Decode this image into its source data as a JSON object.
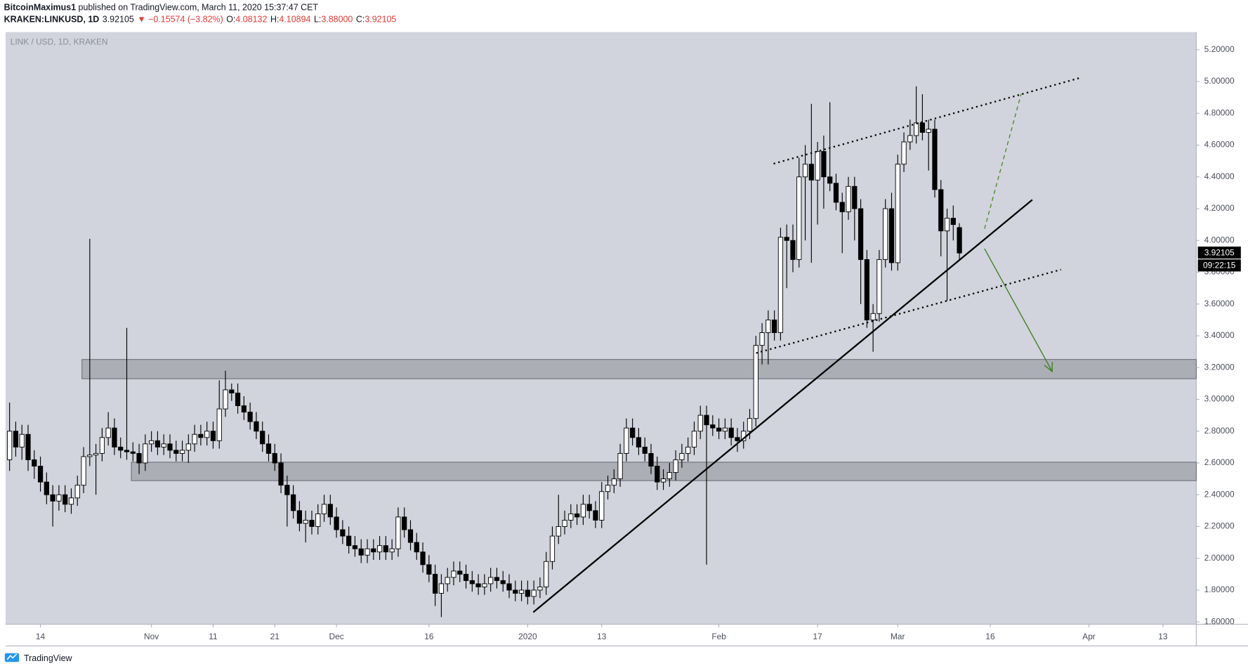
{
  "header": {
    "author": "BitcoinMaximus1",
    "published": " published on TradingView.com, March 11, 2020 15:37:47 CET",
    "symbol": "KRAKEN:LINKUSD, 1D",
    "last": "3.92105",
    "change": "▼ −0.15574 (−3.82%)",
    "ohlc": [
      {
        "label": "O:",
        "value": "4.08132"
      },
      {
        "label": "H:",
        "value": "4.10894"
      },
      {
        "label": "L:",
        "value": "3.88000"
      },
      {
        "label": "C:",
        "value": "3.92105"
      }
    ]
  },
  "footer": {
    "brand": "TradingView"
  },
  "chart_data": {
    "type": "candlestick",
    "title": "LINK / USD, 1D, KRAKEN",
    "last_price_label": "3.92105",
    "countdown": "09:22:15",
    "up_color": "#ffffff",
    "down_color": "#000000",
    "grid": false,
    "xlim": [
      -0.65,
      192.4
    ],
    "ylim": [
      1.585,
      5.311
    ],
    "xticks": [
      {
        "value": 5,
        "label": "14"
      },
      {
        "value": 23,
        "label": "Nov"
      },
      {
        "value": 33,
        "label": "11"
      },
      {
        "value": 43,
        "label": "21"
      },
      {
        "value": 53,
        "label": "Dec"
      },
      {
        "value": 68,
        "label": "16"
      },
      {
        "value": 84,
        "label": "2020"
      },
      {
        "value": 96,
        "label": "13"
      },
      {
        "value": 115,
        "label": "Feb"
      },
      {
        "value": 131,
        "label": "17"
      },
      {
        "value": 144,
        "label": "Mar"
      },
      {
        "value": 159,
        "label": "16"
      },
      {
        "value": 175,
        "label": "Apr"
      },
      {
        "value": 187,
        "label": "13"
      }
    ],
    "yticks": [
      {
        "value": 1.6,
        "label": "1.60000"
      },
      {
        "value": 1.8,
        "label": "1.80000"
      },
      {
        "value": 2.0,
        "label": "2.00000"
      },
      {
        "value": 2.2,
        "label": "2.20000"
      },
      {
        "value": 2.4,
        "label": "2.40000"
      },
      {
        "value": 2.6,
        "label": "2.60000"
      },
      {
        "value": 2.8,
        "label": "2.80000"
      },
      {
        "value": 3.0,
        "label": "3.00000"
      },
      {
        "value": 3.2,
        "label": "3.20000"
      },
      {
        "value": 3.4,
        "label": "3.40000"
      },
      {
        "value": 3.6,
        "label": "3.60000"
      },
      {
        "value": 3.8,
        "label": "3.80000"
      },
      {
        "value": 4.0,
        "label": "4.00000"
      },
      {
        "value": 4.2,
        "label": "4.20000"
      },
      {
        "value": 4.4,
        "label": "4.40000"
      },
      {
        "value": 4.6,
        "label": "4.60000"
      },
      {
        "value": 4.8,
        "label": "4.80000"
      },
      {
        "value": 5.0,
        "label": "5.00000"
      },
      {
        "value": 5.2,
        "label": "5.20000"
      }
    ],
    "open": [
      2.62,
      2.8,
      2.7,
      2.78,
      2.62,
      2.58,
      2.48,
      2.4,
      2.36,
      2.4,
      2.34,
      2.38,
      2.46,
      2.64,
      2.65,
      2.66,
      2.76,
      2.82,
      2.7,
      2.68,
      2.67,
      2.66,
      2.6,
      2.72,
      2.74,
      2.7,
      2.72,
      2.68,
      2.66,
      2.68,
      2.72,
      2.78,
      2.76,
      2.8,
      2.74,
      2.94,
      3.06,
      3.04,
      2.96,
      2.92,
      2.86,
      2.8,
      2.72,
      2.66,
      2.6,
      2.46,
      2.4,
      2.3,
      2.22,
      2.24,
      2.2,
      2.28,
      2.34,
      2.26,
      2.18,
      2.14,
      2.08,
      2.06,
      2.02,
      2.06,
      2.04,
      2.08,
      2.04,
      2.06,
      2.26,
      2.18,
      2.1,
      2.04,
      1.96,
      1.9,
      1.78,
      1.84,
      1.88,
      1.92,
      1.9,
      1.86,
      1.84,
      1.82,
      1.84,
      1.88,
      1.86,
      1.84,
      1.8,
      1.78,
      1.8,
      1.76,
      1.8,
      1.82,
      1.98,
      2.14,
      2.2,
      2.24,
      2.28,
      2.26,
      2.34,
      2.3,
      2.24,
      2.42,
      2.46,
      2.5,
      2.66,
      2.82,
      2.76,
      2.7,
      2.66,
      2.58,
      2.48,
      2.5,
      2.54,
      2.62,
      2.66,
      2.7,
      2.8,
      2.9,
      2.84,
      2.82,
      2.8,
      2.82,
      2.76,
      2.74,
      2.8,
      2.88,
      3.34,
      3.42,
      3.5,
      3.42,
      4.02,
      4.0,
      3.88,
      4.4,
      4.48,
      4.38,
      4.56,
      4.4,
      4.36,
      4.24,
      4.18,
      4.34,
      4.2,
      3.88,
      3.5,
      3.54,
      3.88,
      4.2,
      3.86,
      4.48,
      4.62,
      4.66,
      4.74,
      4.68,
      4.7,
      4.32,
      4.06,
      4.14,
      4.08132
    ],
    "high": [
      2.98,
      2.86,
      2.84,
      2.84,
      2.68,
      2.64,
      2.54,
      2.46,
      2.46,
      2.46,
      2.44,
      2.52,
      2.7,
      4.01,
      2.72,
      2.82,
      2.92,
      2.88,
      2.76,
      3.45,
      2.73,
      2.72,
      2.78,
      2.8,
      2.8,
      2.78,
      2.78,
      2.74,
      2.74,
      2.78,
      2.84,
      2.84,
      2.86,
      2.86,
      3.12,
      3.18,
      3.1,
      3.1,
      3.02,
      2.98,
      2.92,
      2.86,
      2.78,
      2.72,
      2.66,
      2.52,
      2.46,
      2.36,
      2.3,
      2.3,
      2.34,
      2.4,
      2.4,
      2.32,
      2.24,
      2.2,
      2.14,
      2.12,
      2.12,
      2.12,
      2.14,
      2.14,
      2.12,
      2.32,
      2.32,
      2.24,
      2.16,
      2.1,
      2.02,
      1.96,
      1.9,
      1.94,
      1.98,
      1.98,
      1.96,
      1.92,
      1.9,
      1.9,
      1.94,
      1.94,
      1.92,
      1.9,
      1.86,
      1.86,
      1.86,
      1.86,
      1.88,
      2.04,
      2.2,
      2.4,
      2.3,
      2.34,
      2.34,
      2.4,
      2.4,
      2.36,
      2.48,
      2.52,
      2.56,
      2.72,
      2.88,
      2.88,
      2.82,
      2.76,
      2.72,
      2.64,
      2.56,
      2.6,
      2.68,
      2.72,
      2.76,
      2.86,
      2.96,
      2.96,
      2.9,
      2.88,
      2.88,
      2.88,
      2.82,
      2.86,
      2.94,
      3.4,
      3.48,
      3.56,
      3.56,
      4.08,
      4.1,
      4.1,
      4.52,
      4.6,
      4.86,
      4.62,
      4.66,
      4.87,
      4.42,
      4.3,
      4.4,
      4.4,
      4.26,
      3.94,
      3.6,
      3.94,
      4.26,
      4.3,
      4.54,
      4.68,
      4.76,
      4.97,
      4.92,
      4.76,
      4.76,
      4.38,
      4.2,
      4.22,
      4.10894
    ],
    "low": [
      2.55,
      2.64,
      2.62,
      2.55,
      2.5,
      2.42,
      2.34,
      2.2,
      2.3,
      2.29,
      2.28,
      2.33,
      2.41,
      2.58,
      2.4,
      2.61,
      2.71,
      2.65,
      2.63,
      2.62,
      2.61,
      2.53,
      2.55,
      2.67,
      2.65,
      2.65,
      2.63,
      2.61,
      2.61,
      2.6,
      2.67,
      2.71,
      2.71,
      2.69,
      2.69,
      2.89,
      2.99,
      2.91,
      2.87,
      2.81,
      2.75,
      2.67,
      2.61,
      2.55,
      2.41,
      2.2,
      2.25,
      2.17,
      2.1,
      2.15,
      2.15,
      2.23,
      2.21,
      2.13,
      2.09,
      2.03,
      2.01,
      1.97,
      1.97,
      1.99,
      1.99,
      1.99,
      1.99,
      2.01,
      2.13,
      2.05,
      1.99,
      1.91,
      1.85,
      1.7,
      1.63,
      1.79,
      1.83,
      1.85,
      1.81,
      1.79,
      1.77,
      1.77,
      1.79,
      1.81,
      1.79,
      1.75,
      1.73,
      1.73,
      1.71,
      1.71,
      1.75,
      1.77,
      1.93,
      2.09,
      2.15,
      2.19,
      2.21,
      2.21,
      2.25,
      2.19,
      2.19,
      2.37,
      2.41,
      2.45,
      2.61,
      2.71,
      2.65,
      2.61,
      2.53,
      2.43,
      2.43,
      2.45,
      2.49,
      2.57,
      2.61,
      2.65,
      2.75,
      1.96,
      2.77,
      2.75,
      2.75,
      2.71,
      2.67,
      2.69,
      2.75,
      2.83,
      3.22,
      3.22,
      3.37,
      3.37,
      3.7,
      3.8,
      3.83,
      4.0,
      3.86,
      4.1,
      4.2,
      4.31,
      4.19,
      3.92,
      4.13,
      4.0,
      3.6,
      3.45,
      3.3,
      3.49,
      3.83,
      3.81,
      3.81,
      4.43,
      4.57,
      4.61,
      4.63,
      4.44,
      4.27,
      3.9,
      3.62,
      4.0,
      3.88
    ],
    "close": [
      2.8,
      2.7,
      2.78,
      2.62,
      2.58,
      2.48,
      2.4,
      2.36,
      2.4,
      2.34,
      2.38,
      2.46,
      2.64,
      2.65,
      2.66,
      2.76,
      2.82,
      2.7,
      2.68,
      2.67,
      2.66,
      2.6,
      2.72,
      2.74,
      2.7,
      2.72,
      2.68,
      2.66,
      2.68,
      2.72,
      2.78,
      2.76,
      2.8,
      2.74,
      2.94,
      3.06,
      3.04,
      2.96,
      2.92,
      2.86,
      2.8,
      2.72,
      2.66,
      2.6,
      2.46,
      2.4,
      2.3,
      2.22,
      2.24,
      2.2,
      2.28,
      2.34,
      2.26,
      2.18,
      2.14,
      2.08,
      2.06,
      2.02,
      2.06,
      2.04,
      2.08,
      2.04,
      2.06,
      2.26,
      2.18,
      2.1,
      2.04,
      1.96,
      1.9,
      1.78,
      1.84,
      1.88,
      1.92,
      1.9,
      1.86,
      1.84,
      1.82,
      1.84,
      1.88,
      1.86,
      1.84,
      1.8,
      1.78,
      1.8,
      1.76,
      1.8,
      1.82,
      1.98,
      2.14,
      2.2,
      2.24,
      2.28,
      2.26,
      2.34,
      2.3,
      2.24,
      2.42,
      2.46,
      2.5,
      2.66,
      2.82,
      2.76,
      2.7,
      2.66,
      2.58,
      2.48,
      2.5,
      2.54,
      2.62,
      2.66,
      2.7,
      2.8,
      2.9,
      2.84,
      2.82,
      2.8,
      2.82,
      2.76,
      2.74,
      2.8,
      2.88,
      3.34,
      3.42,
      3.5,
      3.42,
      4.02,
      4.0,
      3.88,
      4.4,
      4.48,
      4.38,
      4.56,
      4.4,
      4.36,
      4.24,
      4.18,
      4.34,
      4.2,
      3.88,
      3.5,
      3.54,
      3.88,
      4.2,
      3.86,
      4.48,
      4.62,
      4.66,
      4.74,
      4.68,
      4.7,
      4.32,
      4.06,
      4.14,
      4.1,
      3.92105
    ]
  }
}
